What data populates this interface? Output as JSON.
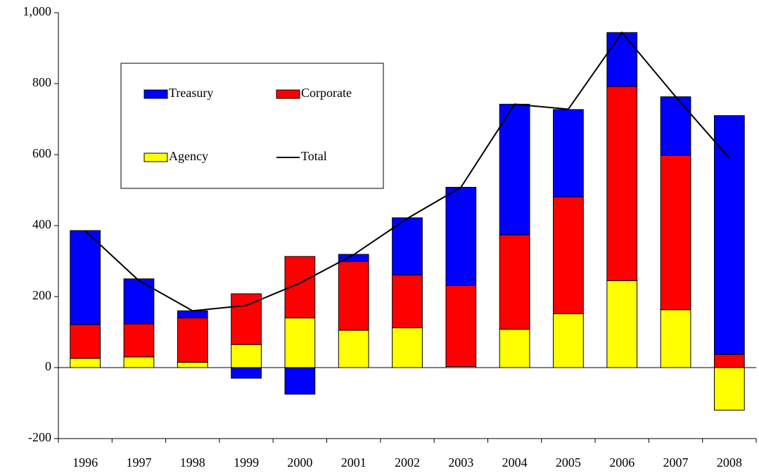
{
  "chart_data": {
    "type": "stacked_bar_line",
    "categories": [
      "1996",
      "1997",
      "1998",
      "1999",
      "2000",
      "2001",
      "2002",
      "2003",
      "2004",
      "2005",
      "2006",
      "2007",
      "2008"
    ],
    "series": [
      {
        "name": "Agency",
        "color": "#ffff00",
        "values": [
          26,
          30,
          15,
          65,
          140,
          105,
          112,
          3,
          108,
          152,
          245,
          163,
          -120
        ]
      },
      {
        "name": "Corporate",
        "color": "#ff0000",
        "values": [
          95,
          93,
          125,
          143,
          173,
          194,
          149,
          228,
          266,
          329,
          547,
          435,
          37
        ]
      },
      {
        "name": "Treasury",
        "color": "#0000ff",
        "values": [
          265,
          127,
          20,
          -30,
          -75,
          20,
          161,
          277,
          368,
          246,
          152,
          165,
          673
        ]
      },
      {
        "name": "Total",
        "color": "#000000",
        "type": "line",
        "values": [
          385,
          245,
          160,
          175,
          238,
          318,
          420,
          508,
          742,
          728,
          944,
          763,
          590
        ]
      }
    ],
    "ylim": [
      -200,
      1000
    ],
    "yticks": [
      -200,
      0,
      200,
      400,
      600,
      800,
      {
        "value": 1000,
        "label": "1,000"
      }
    ],
    "legend": "upper left"
  }
}
